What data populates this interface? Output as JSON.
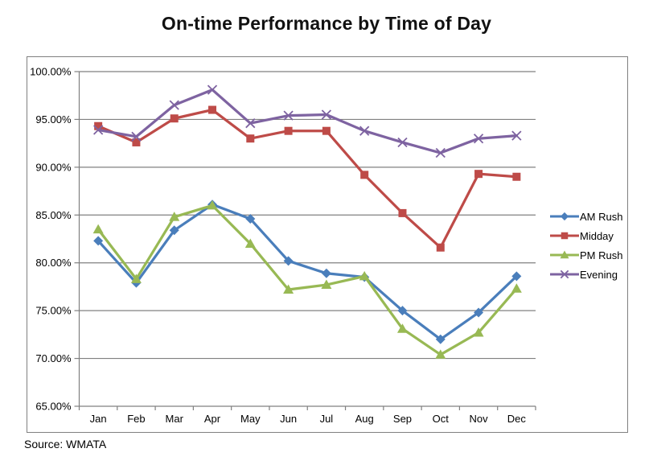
{
  "chart_data": {
    "type": "line",
    "title": "On-time Performance by Time of Day",
    "xlabel": "",
    "ylabel": "",
    "categories": [
      "Jan",
      "Feb",
      "Mar",
      "Apr",
      "May",
      "Jun",
      "Jul",
      "Aug",
      "Sep",
      "Oct",
      "Nov",
      "Dec"
    ],
    "series": [
      {
        "name": "AM Rush",
        "color": "#4A7EBB",
        "marker": "diamond",
        "values": [
          82.3,
          77.9,
          83.4,
          86.1,
          84.6,
          80.2,
          78.9,
          78.5,
          75.0,
          72.0,
          74.8,
          78.6
        ]
      },
      {
        "name": "Midday",
        "color": "#BE4B48",
        "marker": "square",
        "values": [
          94.3,
          92.6,
          95.1,
          96.0,
          93.0,
          93.8,
          93.8,
          89.2,
          85.2,
          81.6,
          89.3,
          89.0
        ]
      },
      {
        "name": "PM Rush",
        "color": "#98B954",
        "marker": "triangle",
        "values": [
          83.5,
          78.3,
          84.8,
          86.0,
          82.0,
          77.2,
          77.7,
          78.6,
          73.1,
          70.4,
          72.7,
          77.3
        ]
      },
      {
        "name": "Evening",
        "color": "#7E63A1",
        "marker": "x",
        "values": [
          93.9,
          93.2,
          96.5,
          98.1,
          94.6,
          95.4,
          95.5,
          93.8,
          92.6,
          91.5,
          93.0,
          93.3
        ]
      }
    ],
    "ylim": [
      65,
      100
    ],
    "y_ticks": [
      {
        "value": 65,
        "label": "65.00%"
      },
      {
        "value": 70,
        "label": "70.00%"
      },
      {
        "value": 75,
        "label": "75.00%"
      },
      {
        "value": 80,
        "label": "80.00%"
      },
      {
        "value": 85,
        "label": "85.00%"
      },
      {
        "value": 90,
        "label": "90.00%"
      },
      {
        "value": 95,
        "label": "95.00%"
      },
      {
        "value": 100,
        "label": "100.00%"
      }
    ],
    "grid": "horizontal",
    "legend_position": "right"
  },
  "source": "Source: WMATA",
  "colors": {
    "gridline": "#808080",
    "axis": "#808080",
    "border": "#808080",
    "text": "#000000",
    "background": "#FFFFFF"
  }
}
